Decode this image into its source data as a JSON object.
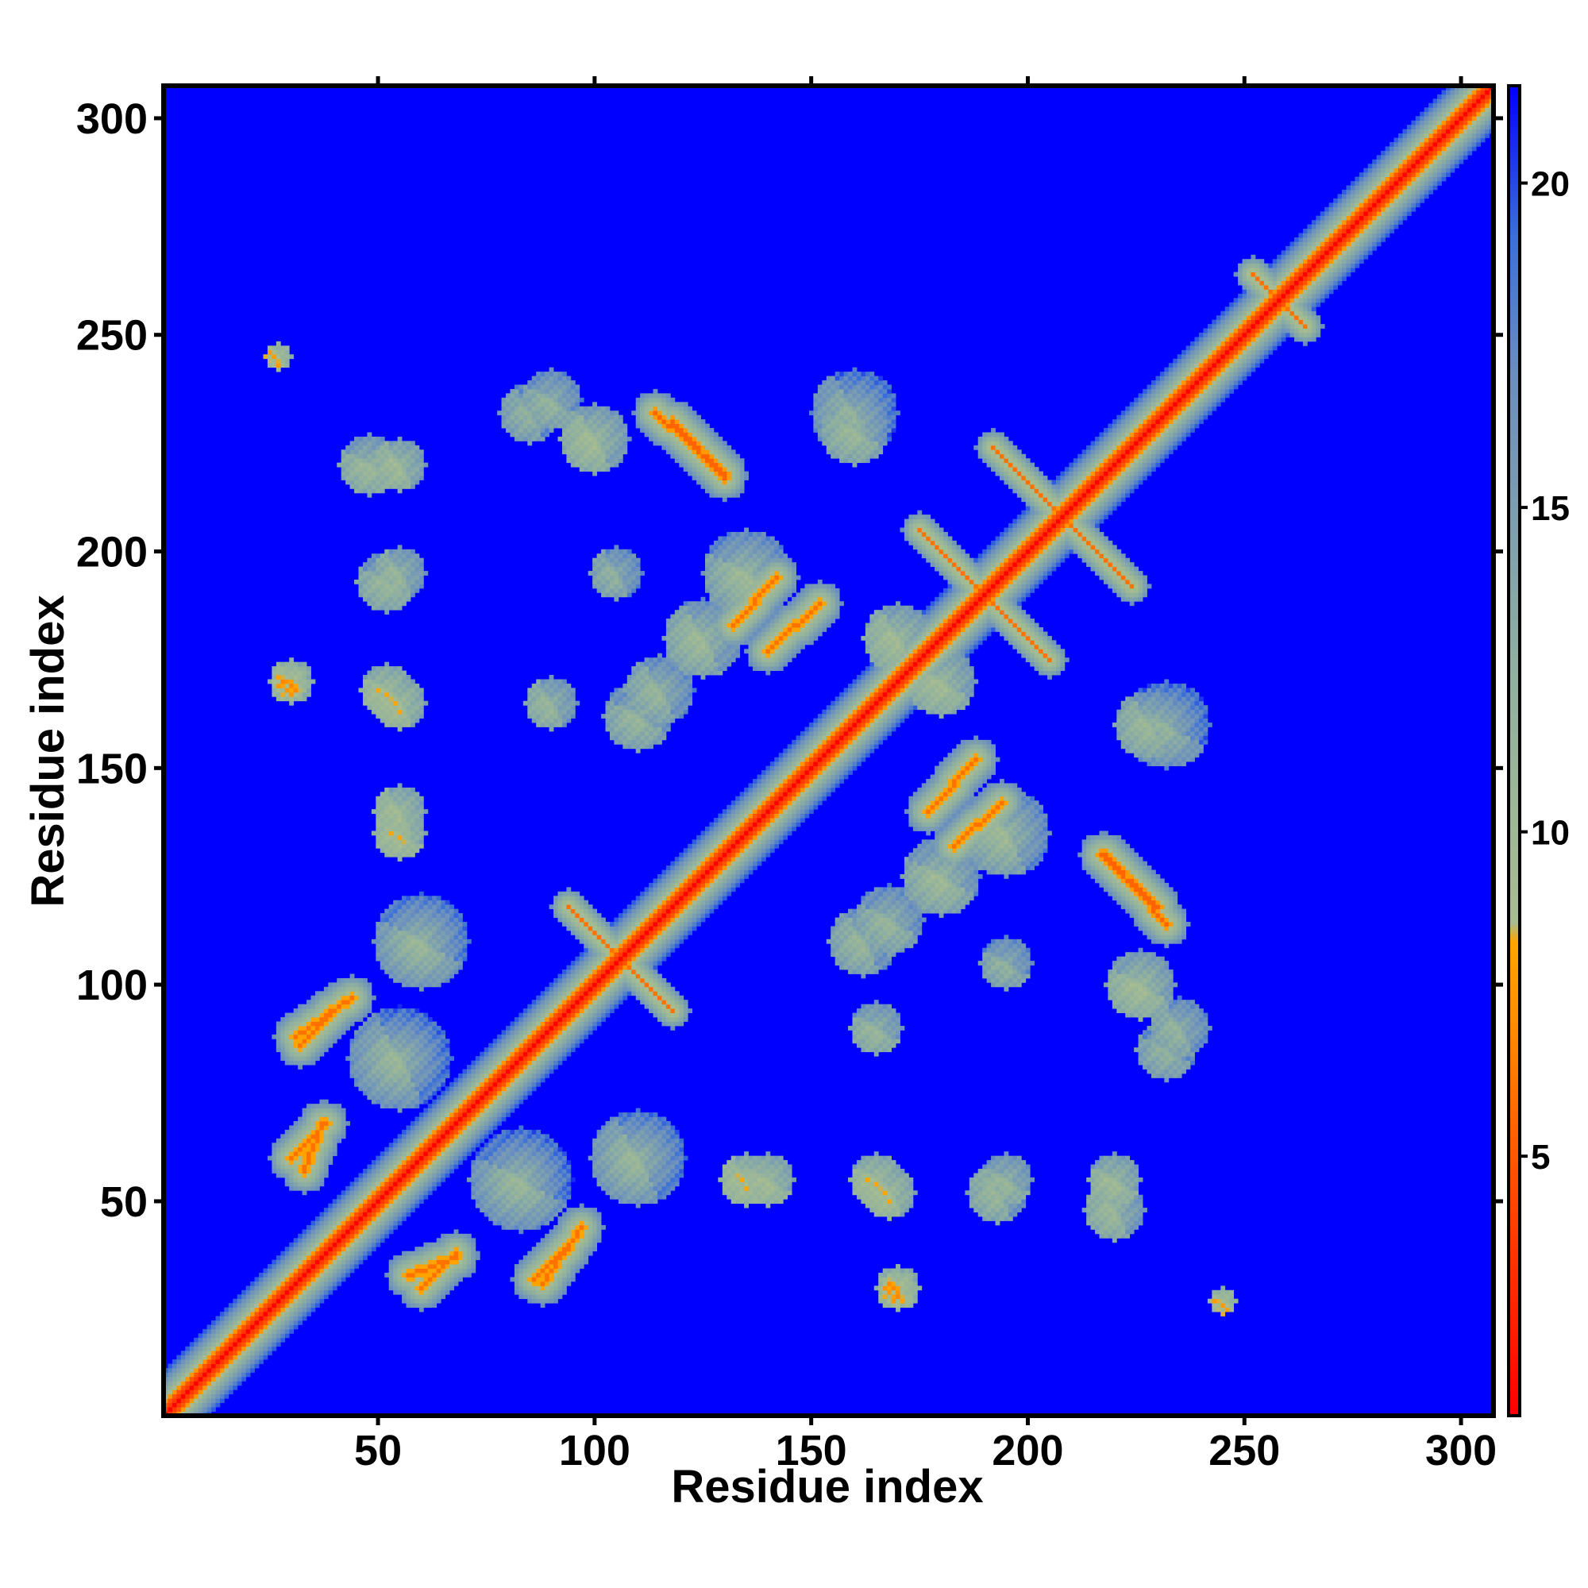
{
  "chart_data": {
    "type": "heatmap",
    "title": "",
    "xlabel": "Residue index",
    "ylabel": "Residue index",
    "xlim": [
      1,
      307
    ],
    "ylim": [
      1,
      307
    ],
    "x_ticks": [
      50,
      100,
      150,
      200,
      250,
      300
    ],
    "y_ticks": [
      50,
      100,
      150,
      200,
      250,
      300
    ],
    "x_tick_labels": [
      "50",
      "100",
      "150",
      "200",
      "250",
      "300"
    ],
    "y_tick_labels": [
      "50",
      "100",
      "150",
      "200",
      "250",
      "300"
    ],
    "grid": false,
    "symmetric": true,
    "colorbar": {
      "range": [
        1,
        21.5
      ],
      "ticks": [
        5,
        10,
        15,
        20
      ],
      "tick_labels": [
        "5",
        "10",
        "15",
        "20"
      ],
      "placement": "right",
      "colors": [
        {
          "value": 1.0,
          "color": "#ff0000"
        },
        {
          "value": 4.5,
          "color": "#ff4a00"
        },
        {
          "value": 7.0,
          "color": "#ff8c00"
        },
        {
          "value": 8.3,
          "color": "#ffa500"
        },
        {
          "value": 8.6,
          "color": "#a8bd90"
        },
        {
          "value": 12.5,
          "color": "#8fb0a0"
        },
        {
          "value": 17.0,
          "color": "#6a8fbf"
        },
        {
          "value": 19.2,
          "color": "#3a6fd8"
        },
        {
          "value": 21.5,
          "color": "#0000ff"
        }
      ]
    },
    "background_value": 21.5,
    "background_color": "#0000ff",
    "diagonal_value": 1.0,
    "near_diagonal_band_width": 4,
    "contact_features": [
      {
        "kind": "antidiagonal",
        "center": [
          190,
          190
        ],
        "half_length": 15,
        "value": 6.0
      },
      {
        "kind": "antidiagonal",
        "center": [
          208,
          208
        ],
        "half_length": 16,
        "value": 6.0
      },
      {
        "kind": "antidiagonal",
        "center": [
          106,
          106
        ],
        "half_length": 12,
        "value": 6.0
      },
      {
        "kind": "antidiagonal",
        "center": [
          258,
          258
        ],
        "half_length": 6,
        "value": 6.0
      },
      {
        "kind": "segment",
        "from": [
          118,
          230
        ],
        "to": [
          130,
          217
        ],
        "value": 5.5
      },
      {
        "kind": "segment",
        "from": [
          142,
          194
        ],
        "to": [
          132,
          183
        ],
        "value": 6.0
      },
      {
        "kind": "segment",
        "from": [
          218,
          130
        ],
        "to": [
          232,
          114
        ],
        "value": 5.5
      },
      {
        "kind": "segment",
        "from": [
          31,
          88
        ],
        "to": [
          44,
          97
        ],
        "value": 6.0
      },
      {
        "kind": "segment",
        "from": [
          30,
          60
        ],
        "to": [
          38,
          68
        ],
        "value": 6.0
      },
      {
        "kind": "segment",
        "from": [
          57,
          33
        ],
        "to": [
          68,
          37
        ],
        "value": 6.0
      },
      {
        "kind": "segment",
        "from": [
          86,
          32
        ],
        "to": [
          93,
          39
        ],
        "value": 6.0
      },
      {
        "kind": "segment",
        "from": [
          177,
          140
        ],
        "to": [
          188,
          152
        ],
        "value": 6.0
      },
      {
        "kind": "blob",
        "center": [
          30,
          170
        ],
        "radius": 4,
        "value": 8.0
      },
      {
        "kind": "blob",
        "center": [
          52,
          168
        ],
        "radius": 6,
        "value": 9.5
      },
      {
        "kind": "blob",
        "center": [
          55,
          135
        ],
        "radius": 6,
        "value": 9.5
      },
      {
        "kind": "blob",
        "center": [
          48,
          220
        ],
        "radius": 7,
        "value": 11.0
      },
      {
        "kind": "blob",
        "center": [
          52,
          193
        ],
        "radius": 7,
        "value": 11.5
      },
      {
        "kind": "blob",
        "center": [
          90,
          235
        ],
        "radius": 7,
        "value": 12.0
      },
      {
        "kind": "blob",
        "center": [
          160,
          228
        ],
        "radius": 8,
        "value": 11.0
      },
      {
        "kind": "blob",
        "center": [
          165,
          55
        ],
        "radius": 6,
        "value": 9.5
      },
      {
        "kind": "blob",
        "center": [
          170,
          30
        ],
        "radius": 5,
        "value": 9.5
      },
      {
        "kind": "blob",
        "center": [
          140,
          55
        ],
        "radius": 6,
        "value": 10.0
      },
      {
        "kind": "blob",
        "center": [
          168,
          115
        ],
        "radius": 8,
        "value": 11.5
      },
      {
        "kind": "blob",
        "center": [
          165,
          90
        ],
        "radius": 6,
        "value": 11.5
      },
      {
        "kind": "blob",
        "center": [
          195,
          105
        ],
        "radius": 6,
        "value": 12.5
      },
      {
        "kind": "blob",
        "center": [
          220,
          55
        ],
        "radius": 6,
        "value": 10.5
      },
      {
        "kind": "blob",
        "center": [
          195,
          55
        ],
        "radius": 6,
        "value": 11.5
      },
      {
        "kind": "blob",
        "center": [
          226,
          100
        ],
        "radius": 8,
        "value": 10.0
      },
      {
        "kind": "blob",
        "center": [
          232,
          160
        ],
        "radius": 10,
        "value": 12.0
      },
      {
        "kind": "blob",
        "center": [
          180,
          125
        ],
        "radius": 9,
        "value": 10.5
      },
      {
        "kind": "blob",
        "center": [
          60,
          110
        ],
        "radius": 11,
        "value": 11.0
      },
      {
        "kind": "blob",
        "center": [
          83,
          55
        ],
        "radius": 12,
        "value": 11.0
      },
      {
        "kind": "blob",
        "center": [
          110,
          162
        ],
        "radius": 8,
        "value": 11.5
      },
      {
        "kind": "blob",
        "center": [
          135,
          195
        ],
        "radius": 10,
        "value": 10.5
      },
      {
        "kind": "blob",
        "center": [
          180,
          170
        ],
        "radius": 8,
        "value": 10.0
      },
      {
        "kind": "blob",
        "center": [
          232,
          85
        ],
        "radius": 7,
        "value": 12.5
      },
      {
        "kind": "blob",
        "center": [
          245,
          27
        ],
        "radius": 3,
        "value": 9.0
      }
    ]
  }
}
